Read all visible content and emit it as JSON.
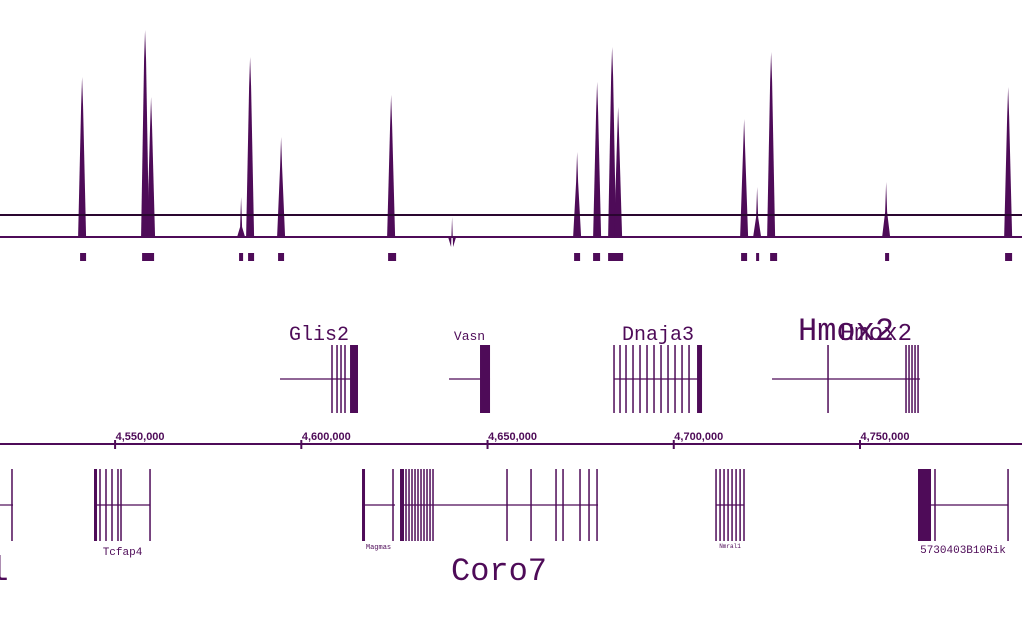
{
  "axis": {
    "lim": [
      4519100,
      4793500
    ],
    "ticks": [
      {
        "value": 4550000,
        "label": "4,550,000"
      },
      {
        "value": 4600000,
        "label": "4,600,000"
      },
      {
        "value": 4650000,
        "label": "4,650,000"
      },
      {
        "value": 4700000,
        "label": "4,700,000"
      },
      {
        "value": 4750000,
        "label": "4,750,000"
      }
    ]
  },
  "signal": {
    "ylim": [
      0,
      210
    ],
    "threshold": 22,
    "peaks": [
      {
        "x": 4541140,
        "height": 160
      },
      {
        "x": 4558050,
        "height": 207
      },
      {
        "x": 4559660,
        "height": 140
      },
      {
        "x": 4583830,
        "height": 40
      },
      {
        "x": 4586250,
        "height": 180
      },
      {
        "x": 4594570,
        "height": 100
      },
      {
        "x": 4624110,
        "height": 142
      },
      {
        "x": 4640480,
        "height": 20
      },
      {
        "x": 4674050,
        "height": 85
      },
      {
        "x": 4679420,
        "height": 155
      },
      {
        "x": 4683450,
        "height": 190
      },
      {
        "x": 4685060,
        "height": 130
      },
      {
        "x": 4718890,
        "height": 118
      },
      {
        "x": 4722380,
        "height": 50
      },
      {
        "x": 4726140,
        "height": 185
      },
      {
        "x": 4757020,
        "height": 55
      },
      {
        "x": 4789780,
        "height": 150
      }
    ]
  },
  "regions": [
    [
      4540600,
      4542210
    ],
    [
      4557250,
      4560470
    ],
    [
      4583290,
      4584370
    ],
    [
      4585710,
      4587320
    ],
    [
      4593760,
      4595370
    ],
    [
      4623300,
      4625450
    ],
    [
      4673240,
      4674850
    ],
    [
      4678340,
      4680220
    ],
    [
      4682370,
      4686400
    ],
    [
      4718080,
      4719690
    ],
    [
      4722110,
      4722920
    ],
    [
      4725870,
      4727750
    ],
    [
      4756740,
      4757820
    ],
    [
      4788960,
      4790840
    ]
  ],
  "top_genes": [
    {
      "label": "Glis2",
      "start": 4594280,
      "end": 4615220,
      "exons": [
        4608240,
        4609590,
        4610660,
        4611730
      ],
      "blocks": [
        [
          4613080,
          4615220
        ]
      ]
    },
    {
      "label": "Vasn",
      "start": 4639660,
      "end": 4650670,
      "exons": [],
      "blocks": [
        [
          4647980,
          4650670
        ]
      ]
    },
    {
      "label": "Dnaja3",
      "start": 4683960,
      "end": 4707590,
      "exons": [
        4683960,
        4685570,
        4687180,
        4689060,
        4690940,
        4692820,
        4694700,
        4696580,
        4698460,
        4700340,
        4702220,
        4704100
      ],
      "blocks": [
        [
          4706250,
          4707590
        ]
      ]
    },
    {
      "label": "Hmox2",
      "alt_label": "Hmox2",
      "start": 4726380,
      "end": 4766120,
      "exons": [
        4741420,
        4762360,
        4763170,
        4763970,
        4764780,
        4765590
      ],
      "blocks": []
    }
  ],
  "bottom_genes": [
    {
      "label": "l",
      "start": 4519100,
      "end": 4522590,
      "exons": [
        4522320
      ],
      "blocks": []
    },
    {
      "label": "Tcfap4",
      "start": 4544610,
      "end": 4559380,
      "exons": [
        4545950,
        4547560,
        4549170,
        4550780,
        4551590,
        4559380
      ],
      "blocks": [
        [
          4544340,
          4545150
        ]
      ]
    },
    {
      "label": "Magmas",
      "start": 4616300,
      "end": 4625160,
      "exons": [
        4624620
      ],
      "blocks": [
        [
          4616300,
          4617100
        ]
      ]
    },
    {
      "label": "Coro7",
      "start": 4626500,
      "end": 4679660,
      "exons": [
        4628110,
        4628920,
        4629720,
        4630530,
        4631330,
        4632140,
        4632940,
        4633750,
        4634560,
        4635360,
        4655230,
        4661680,
        4668390,
        4670270,
        4674830,
        4677250,
        4679400
      ],
      "blocks": [
        [
          4626500,
          4627570
        ]
      ]
    },
    {
      "label": "Nmral1",
      "start": 4711350,
      "end": 4718860,
      "exons": [
        4711350,
        4712430,
        4713500,
        4714580,
        4715650,
        4716730,
        4717810,
        4718860
      ],
      "blocks": []
    },
    {
      "label": "5730403B10Rik",
      "start": 4765580,
      "end": 4789750,
      "exons": [
        4770140,
        4789750
      ],
      "blocks": [
        [
          4765580,
          4769070
        ]
      ]
    }
  ]
}
